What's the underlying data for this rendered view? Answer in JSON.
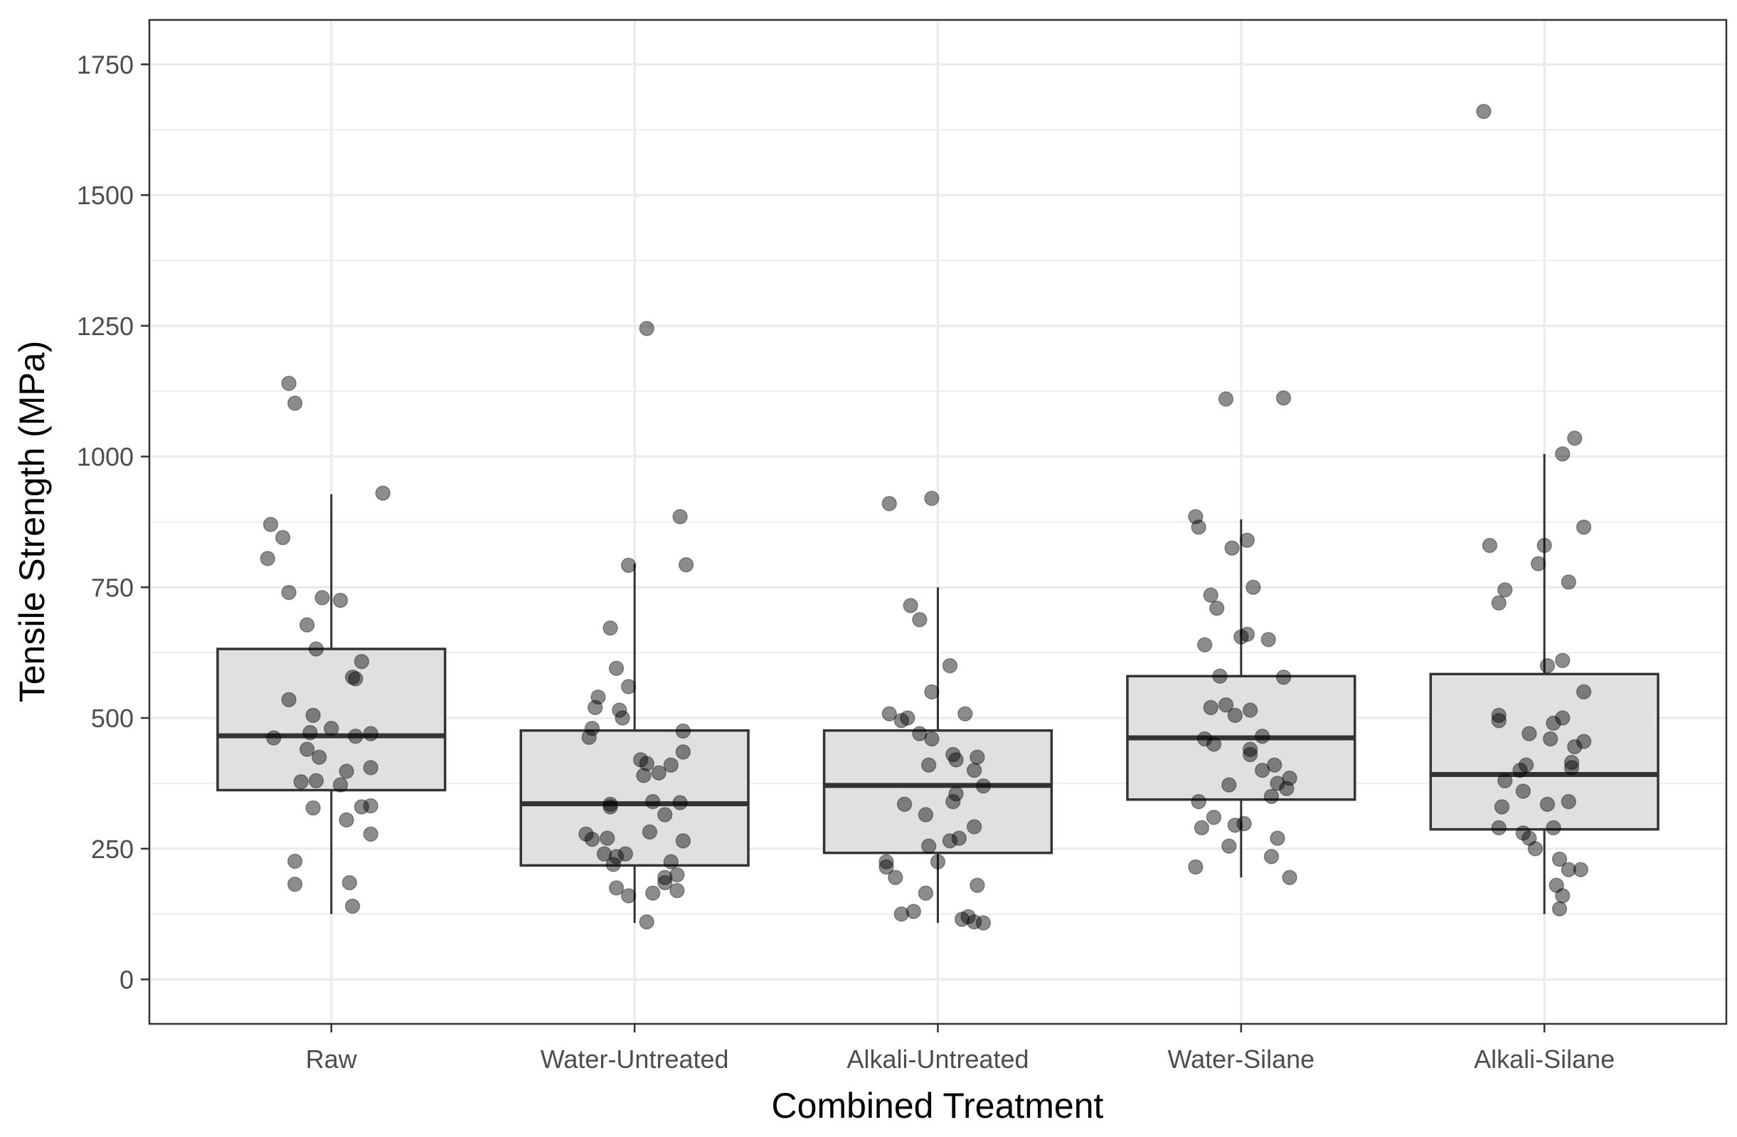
{
  "chart_data": {
    "type": "box",
    "title": "",
    "xlabel": "Combined Treatment",
    "ylabel": "Tensile Strength (MPa)",
    "ylim": [
      -85,
      1835
    ],
    "yticks": [
      0,
      250,
      500,
      750,
      1000,
      1250,
      1500,
      1750
    ],
    "grid": true,
    "legend": "none",
    "colors": {
      "panel_border": "#333333",
      "grid": "#ebebeb",
      "box_fill": "#e0e0e0",
      "box_stroke": "#333333",
      "point": "#000000",
      "point_opacity": 0.45,
      "tick_label": "#4d4d4d",
      "axis_title": "#000000"
    },
    "categories": [
      "Raw",
      "Water-Untreated",
      "Alkali-Untreated",
      "Water-Silane",
      "Alkali-Silane"
    ],
    "boxes": [
      {
        "category": "Raw",
        "whisker_low": 125,
        "q1": 362,
        "median": 466,
        "q3": 632,
        "whisker_high": 928
      },
      {
        "category": "Water-Untreated",
        "whisker_low": 108,
        "q1": 218,
        "median": 336,
        "q3": 476,
        "whisker_high": 795
      },
      {
        "category": "Alkali-Untreated",
        "whisker_low": 108,
        "q1": 242,
        "median": 371,
        "q3": 476,
        "whisker_high": 750
      },
      {
        "category": "Water-Silane",
        "whisker_low": 195,
        "q1": 344,
        "median": 462,
        "q3": 580,
        "whisker_high": 880
      },
      {
        "category": "Alkali-Silane",
        "whisker_low": 125,
        "q1": 287,
        "median": 392,
        "q3": 584,
        "whisker_high": 1005
      }
    ],
    "points": [
      {
        "category": "Raw",
        "jitter": [
          -0.14,
          -0.12,
          0.17,
          -0.2,
          -0.16,
          -0.21,
          -0.14,
          0.03,
          -0.03,
          -0.08,
          -0.05,
          0.1,
          0.07,
          0.08,
          -0.14,
          -0.06,
          0.0,
          0.13,
          -0.07,
          0.08,
          -0.19,
          -0.08,
          -0.04,
          0.13,
          0.05,
          -0.05,
          -0.1,
          0.03,
          0.1,
          -0.06,
          0.13,
          0.05,
          0.13,
          -0.12,
          -0.12,
          0.06,
          0.07
        ],
        "y": [
          1140,
          1102,
          930,
          870,
          845,
          805,
          740,
          725,
          730,
          678,
          632,
          608,
          578,
          575,
          535,
          505,
          480,
          470,
          472,
          465,
          462,
          440,
          425,
          405,
          398,
          380,
          378,
          372,
          330,
          328,
          332,
          305,
          278,
          226,
          182,
          185,
          140
        ]
      },
      {
        "category": "Water-Untreated",
        "jitter": [
          0.04,
          0.15,
          0.17,
          -0.02,
          -0.08,
          -0.06,
          0.16,
          -0.02,
          -0.12,
          -0.13,
          -0.05,
          -0.04,
          -0.14,
          -0.15,
          0.16,
          0.02,
          0.04,
          0.12,
          0.08,
          0.03,
          0.06,
          0.15,
          -0.08,
          -0.08,
          0.1,
          0.05,
          -0.16,
          -0.14,
          -0.09,
          0.16,
          -0.1,
          -0.06,
          0.12,
          -0.03,
          -0.07,
          0.14,
          0.1,
          0.1,
          -0.06,
          0.14,
          0.06,
          -0.02,
          0.04
        ],
        "y": [
          1245,
          885,
          793,
          792,
          672,
          595,
          475,
          560,
          540,
          520,
          515,
          500,
          480,
          463,
          435,
          420,
          413,
          410,
          395,
          390,
          340,
          338,
          335,
          330,
          315,
          282,
          278,
          268,
          270,
          265,
          240,
          235,
          225,
          240,
          220,
          200,
          195,
          185,
          175,
          170,
          165,
          160,
          110
        ]
      },
      {
        "category": "Alkali-Untreated",
        "jitter": [
          -0.02,
          -0.16,
          -0.09,
          -0.06,
          0.04,
          -0.02,
          0.09,
          -0.16,
          -0.1,
          -0.12,
          -0.06,
          -0.02,
          0.05,
          0.13,
          0.06,
          -0.03,
          0.12,
          0.15,
          0.06,
          0.05,
          -0.11,
          -0.04,
          0.12,
          0.07,
          0.04,
          -0.03,
          0.0,
          -0.17,
          -0.17,
          -0.14,
          -0.08,
          -0.12,
          0.08,
          0.12,
          0.15,
          0.1,
          -0.04,
          0.13
        ],
        "y": [
          920,
          910,
          715,
          688,
          600,
          550,
          508,
          508,
          500,
          495,
          470,
          460,
          430,
          425,
          420,
          410,
          400,
          370,
          355,
          340,
          335,
          315,
          292,
          270,
          265,
          255,
          225,
          225,
          215,
          195,
          130,
          125,
          115,
          110,
          108,
          120,
          165,
          180
        ]
      },
      {
        "category": "Water-Silane",
        "jitter": [
          -0.05,
          0.14,
          -0.15,
          -0.14,
          -0.03,
          0.02,
          0.04,
          -0.1,
          -0.08,
          0.02,
          0.0,
          0.09,
          -0.12,
          0.14,
          -0.07,
          -0.05,
          -0.1,
          0.03,
          -0.02,
          0.07,
          -0.12,
          -0.09,
          0.03,
          0.03,
          0.11,
          0.07,
          0.16,
          -0.04,
          0.12,
          0.15,
          0.1,
          -0.14,
          -0.09,
          -0.02,
          0.01,
          -0.13,
          0.12,
          -0.04,
          0.1,
          -0.15,
          0.16
        ],
        "y": [
          1110,
          1112,
          885,
          865,
          825,
          840,
          750,
          735,
          710,
          660,
          655,
          650,
          640,
          578,
          580,
          525,
          520,
          515,
          505,
          465,
          460,
          450,
          440,
          430,
          410,
          400,
          385,
          372,
          375,
          365,
          350,
          340,
          310,
          295,
          298,
          290,
          270,
          255,
          235,
          215,
          195
        ]
      },
      {
        "category": "Alkali-Silane",
        "jitter": [
          -0.2,
          0.1,
          0.06,
          -0.18,
          -0.13,
          -0.15,
          0.13,
          -0.02,
          0.0,
          0.08,
          0.06,
          0.01,
          0.13,
          0.06,
          -0.15,
          -0.15,
          0.03,
          -0.05,
          0.02,
          0.13,
          0.1,
          0.09,
          -0.06,
          0.09,
          -0.08,
          -0.13,
          -0.07,
          0.08,
          0.01,
          -0.14,
          -0.15,
          0.03,
          -0.07,
          -0.05,
          -0.03,
          0.05,
          0.08,
          0.12,
          0.04,
          0.06,
          0.05
        ],
        "y": [
          1660,
          1035,
          1005,
          830,
          745,
          720,
          865,
          795,
          830,
          760,
          610,
          600,
          550,
          500,
          505,
          495,
          490,
          470,
          460,
          455,
          445,
          415,
          410,
          405,
          400,
          380,
          360,
          340,
          335,
          330,
          290,
          290,
          280,
          270,
          250,
          230,
          210,
          210,
          180,
          160,
          135
        ]
      }
    ]
  }
}
